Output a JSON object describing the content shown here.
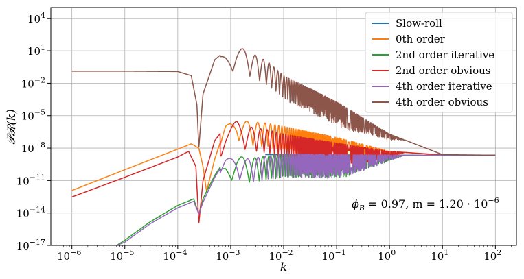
{
  "chart_data": {
    "type": "line",
    "xlabel": "k",
    "ylabel": "𝒫ℛ(k)",
    "xscale": "log",
    "yscale": "log",
    "xlim": [
      4e-07,
      250
    ],
    "ylim": [
      1e-17,
      100000.0
    ],
    "grid": true,
    "legend_position": "top-right",
    "x_ticks": [
      {
        "value": 1e-06,
        "label": "10",
        "exp": "−6"
      },
      {
        "value": 1e-05,
        "label": "10",
        "exp": "−5"
      },
      {
        "value": 0.0001,
        "label": "10",
        "exp": "−4"
      },
      {
        "value": 0.001,
        "label": "10",
        "exp": "−3"
      },
      {
        "value": 0.01,
        "label": "10",
        "exp": "−2"
      },
      {
        "value": 0.1,
        "label": "10",
        "exp": "−1"
      },
      {
        "value": 1,
        "label": "10",
        "exp": "0"
      },
      {
        "value": 10,
        "label": "10",
        "exp": "1"
      },
      {
        "value": 100,
        "label": "10",
        "exp": "2"
      }
    ],
    "y_ticks": [
      {
        "value": 1e-17,
        "label": "10",
        "exp": "−17"
      },
      {
        "value": 1e-14,
        "label": "10",
        "exp": "−14"
      },
      {
        "value": 1e-11,
        "label": "10",
        "exp": "−11"
      },
      {
        "value": 1e-08,
        "label": "10",
        "exp": "−8"
      },
      {
        "value": 1e-05,
        "label": "10",
        "exp": "−5"
      },
      {
        "value": 0.01,
        "label": "10",
        "exp": "−2"
      },
      {
        "value": 10,
        "label": "10",
        "exp": "1"
      },
      {
        "value": 10000.0,
        "label": "10",
        "exp": "4"
      }
    ],
    "annotation": "ϕ_B = 0.97,  m = 1.20 · 10^−6",
    "annotation_parts": {
      "phi": "ϕ",
      "phi_sub": "B",
      "phi_value": " = 0.97,  m = 1.20 · 10",
      "m_exp": "−6"
    },
    "series": [
      {
        "name": "Slow-roll",
        "color": "#1f77b4",
        "points": [
          [
            0.0045,
            2.5e-09
          ],
          [
            0.01,
            2.4e-09
          ],
          [
            0.1,
            2.3e-09
          ],
          [
            1,
            2.2e-09
          ],
          [
            10,
            2.15e-09
          ],
          [
            100,
            2.1e-09
          ]
        ]
      },
      {
        "name": "0th order",
        "color": "#ff7f0e",
        "points": [
          [
            1e-06,
            1.2e-12
          ],
          [
            1e-05,
            1e-10
          ],
          [
            0.0001,
            8e-09
          ],
          [
            0.00018,
            2.5e-08
          ],
          [
            0.00025,
            1e-08
          ],
          [
            0.0003,
            2e-10
          ],
          [
            0.00035,
            1e-12
          ],
          [
            0.0005,
            1e-09
          ],
          [
            0.0008,
            1e-06
          ],
          [
            0.0013,
            1e-05
          ],
          [
            0.002,
            3e-06
          ],
          [
            0.005,
            2e-06
          ],
          [
            0.01,
            1e-06
          ],
          [
            0.1,
            1e-07
          ],
          [
            1,
            5e-09
          ],
          [
            10,
            2.3e-09
          ],
          [
            100,
            2.2e-09
          ]
        ],
        "oscillating": true
      },
      {
        "name": "2nd order iterative",
        "color": "#2ca02c",
        "points": [
          [
            7e-06,
            1e-17
          ],
          [
            1e-05,
            3e-17
          ],
          [
            3e-05,
            1.5e-15
          ],
          [
            0.0001,
            5e-14
          ],
          [
            0.0002,
            2e-13
          ],
          [
            0.00025,
            8e-15
          ],
          [
            0.0003,
            2e-13
          ],
          [
            0.00035,
            1e-12
          ],
          [
            0.0005,
            3e-11
          ],
          [
            0.0008,
            1e-09
          ],
          [
            0.0013,
            2.5e-09
          ],
          [
            0.002,
            1e-09
          ],
          [
            0.01,
            3e-09
          ],
          [
            0.1,
            2.6e-09
          ],
          [
            1,
            2.3e-09
          ],
          [
            10,
            2.2e-09
          ],
          [
            100,
            2.1e-09
          ]
        ],
        "oscillating": true
      },
      {
        "name": "2nd order obvious",
        "color": "#d62728",
        "points": [
          [
            1e-06,
            3e-13
          ],
          [
            1e-05,
            2e-11
          ],
          [
            0.0001,
            1.5e-09
          ],
          [
            0.00016,
            5e-09
          ],
          [
            0.00022,
            2e-10
          ],
          [
            0.00025,
            1e-15
          ],
          [
            0.0003,
            1e-11
          ],
          [
            0.0005,
            5e-08
          ],
          [
            0.0008,
            1e-06
          ],
          [
            0.0013,
            3e-06
          ],
          [
            0.002,
            1e-06
          ],
          [
            0.005,
            5e-07
          ],
          [
            0.01,
            2e-07
          ],
          [
            0.1,
            3e-08
          ],
          [
            1,
            5e-09
          ],
          [
            10,
            2.3e-09
          ],
          [
            100,
            2.2e-09
          ]
        ],
        "oscillating": true
      },
      {
        "name": "4th order iterative",
        "color": "#9467bd",
        "points": [
          [
            7e-06,
            1e-17
          ],
          [
            1e-05,
            2e-17
          ],
          [
            3e-05,
            1e-15
          ],
          [
            0.0001,
            3e-14
          ],
          [
            0.0002,
            1.2e-13
          ],
          [
            0.00025,
            8e-15
          ],
          [
            0.0003,
            1e-13
          ],
          [
            0.00035,
            5e-13
          ],
          [
            0.0005,
            2e-11
          ],
          [
            0.0008,
            8e-10
          ],
          [
            0.0013,
            2.6e-09
          ],
          [
            0.002,
            1e-09
          ],
          [
            0.01,
            3e-09
          ],
          [
            0.1,
            2.6e-09
          ],
          [
            1,
            2.3e-09
          ],
          [
            10,
            2.2e-09
          ],
          [
            100,
            2.1e-09
          ]
        ],
        "oscillating": true
      },
      {
        "name": "4th order obvious",
        "color": "#8c564b",
        "points": [
          [
            1e-06,
            0.13
          ],
          [
            1e-05,
            0.13
          ],
          [
            0.0001,
            0.12
          ],
          [
            0.00018,
            0.05
          ],
          [
            0.00023,
            0.0001
          ],
          [
            0.00025,
            1e-08
          ],
          [
            0.0003,
            0.001
          ],
          [
            0.0005,
            1.5
          ],
          [
            0.0008,
            10
          ],
          [
            0.0013,
            30
          ],
          [
            0.002,
            10
          ],
          [
            0.005,
            1
          ],
          [
            0.01,
            0.05
          ],
          [
            0.1,
            0.0002
          ],
          [
            1,
            2e-07
          ],
          [
            10,
            2.5e-09
          ],
          [
            100,
            2.2e-09
          ]
        ],
        "oscillating": true
      }
    ]
  }
}
